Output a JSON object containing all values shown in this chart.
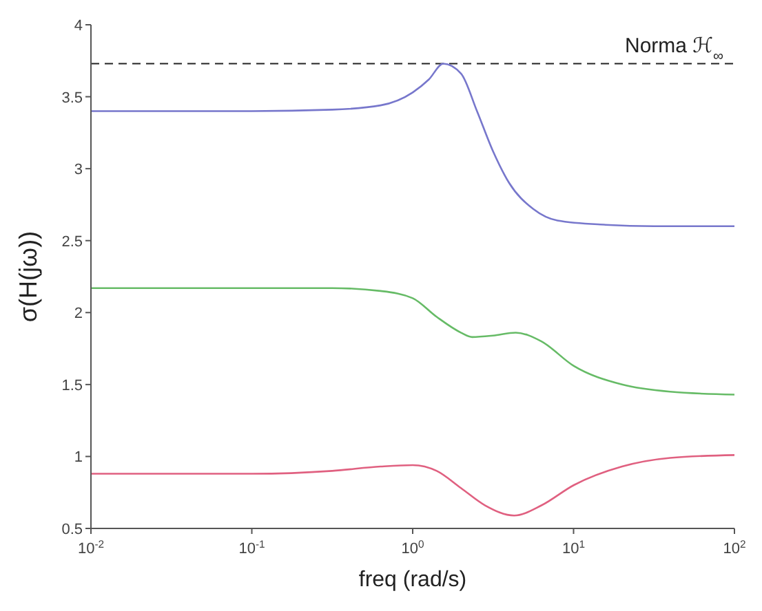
{
  "chart_data": {
    "type": "line",
    "xlabel": "freq (rad/s)",
    "ylabel": "σ(H(jω))",
    "log": "x",
    "xlim": [
      0.01,
      100
    ],
    "xticks": [
      {
        "value": 0.01,
        "label": "10$^{-2}$"
      },
      {
        "value": 0.1,
        "label": "10$^{-1}$"
      },
      {
        "value": 1,
        "label": "10$^{0}$"
      },
      {
        "value": 10,
        "label": "10$^{1}$"
      },
      {
        "value": 100,
        "label": "10$^{2}$"
      }
    ],
    "ylim": [
      0.5,
      4
    ],
    "yticks": [
      0.5,
      1,
      1.5,
      2,
      2.5,
      3,
      3.5,
      4
    ],
    "grid": false,
    "legend": false,
    "marker": "none",
    "line_style": "solid",
    "series": [
      {
        "color": "#7777cc",
        "x": [
          0.01,
          0.1,
          0.316,
          0.631,
          1,
          1.26,
          1.55,
          2,
          2.51,
          3.16,
          3.98,
          5.62,
          7.94,
          15.8,
          31.6,
          100
        ],
        "values": [
          3.4,
          3.4,
          3.41,
          3.44,
          3.53,
          3.62,
          3.73,
          3.66,
          3.4,
          3.12,
          2.9,
          2.72,
          2.64,
          2.61,
          2.6,
          2.6
        ]
      },
      {
        "color": "#66bb66",
        "x": [
          0.01,
          0.316,
          0.631,
          1,
          1.41,
          2,
          2.34,
          3.16,
          4.37,
          6.31,
          10,
          20,
          39.8,
          100
        ],
        "values": [
          2.17,
          2.17,
          2.15,
          2.1,
          1.97,
          1.86,
          1.83,
          1.84,
          1.86,
          1.8,
          1.63,
          1.5,
          1.45,
          1.43
        ]
      },
      {
        "color": "#e06080",
        "x": [
          0.01,
          0.1,
          0.316,
          0.631,
          1,
          1.41,
          2,
          2.82,
          4.27,
          6.31,
          10,
          20,
          39.8,
          100
        ],
        "values": [
          0.88,
          0.88,
          0.9,
          0.93,
          0.94,
          0.9,
          0.78,
          0.66,
          0.59,
          0.66,
          0.8,
          0.93,
          0.99,
          1.01
        ]
      }
    ],
    "ref_lines": [
      {
        "axis": "y",
        "value": 3.73,
        "label": "Norma ℋ$_{∞}$",
        "color": "#222222",
        "line_style": "dashed"
      }
    ]
  }
}
